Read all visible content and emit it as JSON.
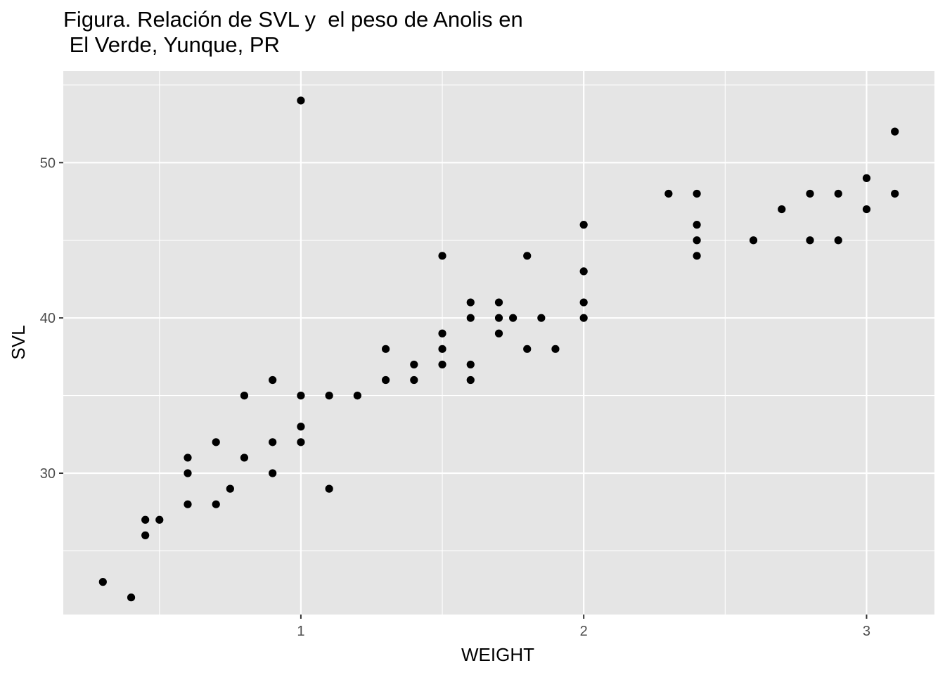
{
  "chart_data": {
    "type": "scatter",
    "title": "Figura. Relación de SVL y  el peso de Anolis en\n El Verde, Yunque, PR",
    "xlabel": "WEIGHT",
    "ylabel": "SVL",
    "xlim": [
      0.16,
      3.24
    ],
    "ylim": [
      20.9,
      55.9
    ],
    "xticks": [
      1,
      2,
      3
    ],
    "yticks": [
      30,
      40,
      50
    ],
    "grid": true,
    "background": "#e5e5e5",
    "grid_color": "#ffffff",
    "point_color": "#000000",
    "points": [
      [
        0.3,
        23
      ],
      [
        0.4,
        22
      ],
      [
        0.45,
        27
      ],
      [
        0.45,
        26
      ],
      [
        0.5,
        27
      ],
      [
        0.6,
        31
      ],
      [
        0.6,
        30
      ],
      [
        0.6,
        28
      ],
      [
        0.7,
        32
      ],
      [
        0.7,
        28
      ],
      [
        0.75,
        29
      ],
      [
        0.8,
        35
      ],
      [
        0.8,
        31
      ],
      [
        0.9,
        36
      ],
      [
        0.9,
        32
      ],
      [
        0.9,
        30
      ],
      [
        1.0,
        54
      ],
      [
        1.0,
        35
      ],
      [
        1.0,
        33
      ],
      [
        1.0,
        32
      ],
      [
        1.1,
        35
      ],
      [
        1.1,
        29
      ],
      [
        1.2,
        35
      ],
      [
        1.3,
        38
      ],
      [
        1.3,
        36
      ],
      [
        1.4,
        37
      ],
      [
        1.4,
        36
      ],
      [
        1.5,
        44
      ],
      [
        1.5,
        39
      ],
      [
        1.5,
        38
      ],
      [
        1.5,
        37
      ],
      [
        1.6,
        41
      ],
      [
        1.6,
        40
      ],
      [
        1.6,
        37
      ],
      [
        1.6,
        36
      ],
      [
        1.7,
        41
      ],
      [
        1.7,
        40
      ],
      [
        1.7,
        39
      ],
      [
        1.75,
        40
      ],
      [
        1.8,
        44
      ],
      [
        1.8,
        38
      ],
      [
        1.85,
        40
      ],
      [
        1.9,
        38
      ],
      [
        2.0,
        46
      ],
      [
        2.0,
        43
      ],
      [
        2.0,
        41
      ],
      [
        2.0,
        40
      ],
      [
        2.3,
        48
      ],
      [
        2.4,
        48
      ],
      [
        2.4,
        46
      ],
      [
        2.4,
        45
      ],
      [
        2.4,
        44
      ],
      [
        2.6,
        45
      ],
      [
        2.7,
        47
      ],
      [
        2.8,
        48
      ],
      [
        2.8,
        45
      ],
      [
        2.9,
        48
      ],
      [
        2.9,
        45
      ],
      [
        3.0,
        49
      ],
      [
        3.0,
        47
      ],
      [
        3.1,
        52
      ],
      [
        3.1,
        48
      ]
    ]
  }
}
